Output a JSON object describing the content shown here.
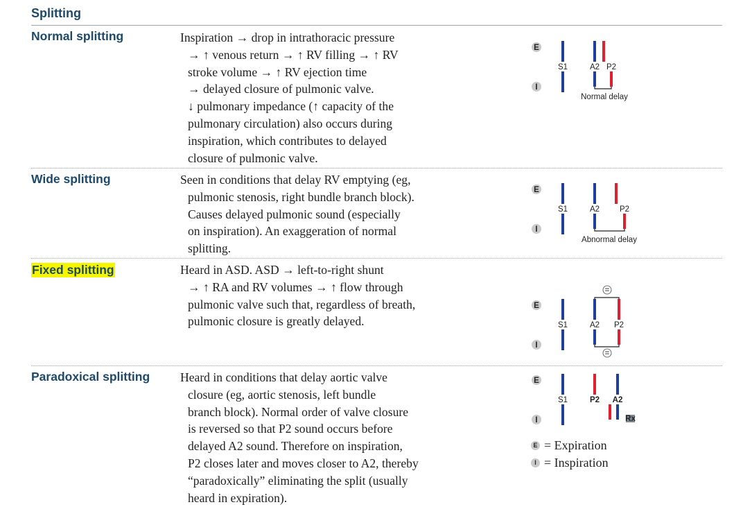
{
  "section_title": "Splitting",
  "rows": [
    {
      "heading": "Normal splitting",
      "lines": [
        "Inspiration → drop in intrathoracic pressure",
        "→ ↑ venous return → ↑ RV filling → ↑ RV",
        "stroke volume → ↑ RV ejection time",
        "→ delayed closure of pulmonic valve.",
        "↓ pulmonary impedance (↑ capacity of the",
        "pulmonary circulation) also occurs during",
        "inspiration, which contributes to delayed",
        "closure of pulmonic valve."
      ],
      "diagram": {
        "exp": "E",
        "insp": "I",
        "s1": "S1",
        "a2": "A2",
        "p2": "P2",
        "caption": "Normal delay"
      }
    },
    {
      "heading": "Wide splitting",
      "lines": [
        "Seen in conditions that delay RV emptying (eg,",
        "pulmonic stenosis, right bundle branch block).",
        "Causes delayed pulmonic sound (especially",
        "on inspiration). An exaggeration of normal",
        "splitting."
      ],
      "diagram": {
        "exp": "E",
        "insp": "I",
        "s1": "S1",
        "a2": "A2",
        "p2": "P2",
        "caption": "Abnormal delay"
      }
    },
    {
      "heading": "Fixed splitting",
      "lines": [
        "Heard in ASD. ASD → left-to-right shunt",
        "→ ↑ RA and RV volumes → ↑ flow through",
        "pulmonic valve such that, regardless of breath,",
        "pulmonic closure is greatly delayed."
      ],
      "diagram": {
        "exp": "E",
        "insp": "I",
        "s1": "S1",
        "a2": "A2",
        "p2": "P2",
        "equal": "="
      }
    },
    {
      "heading": "Paradoxical splitting",
      "lines": [
        "Heard in conditions that delay aortic valve",
        "closure (eg, aortic stenosis, left bundle",
        "branch block). Normal order of valve closure",
        "is reversed so that P2 sound occurs before",
        "delayed A2 sound. Therefore on inspiration,",
        "P2 closes later and moves closer to A2, thereby",
        "“paradoxically” eliminating the split (usually",
        "heard in expiration)."
      ],
      "diagram": {
        "exp": "E",
        "insp": "I",
        "s1": "S1",
        "p2": "P2",
        "a2": "A2",
        "rx": "Rx"
      }
    }
  ],
  "legend": [
    {
      "icon": "E",
      "text": "= Expiration"
    },
    {
      "icon": "I",
      "text": "= Inspiration"
    }
  ],
  "colors": {
    "heading": "#1d4a6b",
    "aortic_blue": "#1f3f9c",
    "pulmonic_red": "#e0202e",
    "highlight": "#f5f500"
  }
}
